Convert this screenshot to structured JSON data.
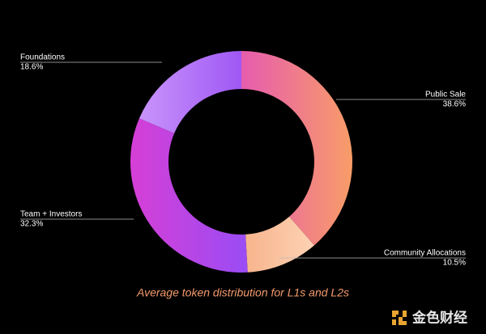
{
  "chart_data": {
    "type": "donut",
    "caption": "Average token distribution for L1s and L2s",
    "categories": [
      "Public Sale",
      "Community Allocations",
      "Team + Investors",
      "Foundations"
    ],
    "values": [
      38.6,
      10.5,
      32.3,
      18.6
    ],
    "value_labels": [
      "38.6%",
      "10.5%",
      "32.3%",
      "18.6%"
    ],
    "colors": [
      [
        "#e65cae",
        "#f89d68"
      ],
      [
        "#f7b48c",
        "#fdd2b4"
      ],
      [
        "#d63fd6",
        "#9a4cf5"
      ],
      [
        "#c994fb",
        "#9f58f4"
      ]
    ]
  },
  "watermark": "金色财经"
}
